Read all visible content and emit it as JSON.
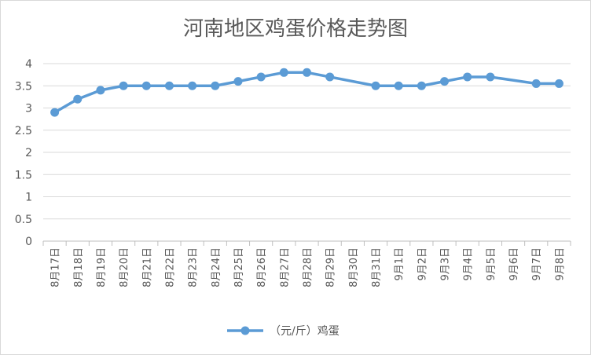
{
  "chart_data": {
    "type": "line",
    "title": "河南地区鸡蛋价格走势图",
    "xlabel": "",
    "ylabel": "",
    "categories": [
      "8月17日",
      "8月18日",
      "8月19日",
      "8月20日",
      "8月21日",
      "8月22日",
      "8月23日",
      "8月24日",
      "8月25日",
      "8月26日",
      "8月27日",
      "8月28日",
      "8月29日",
      "8月30日",
      "8月31日",
      "9月1日",
      "9月2日",
      "9月3日",
      "9月4日",
      "9月5日",
      "9月6日",
      "9月7日",
      "9月8日"
    ],
    "series": [
      {
        "name": "（元/斤）鸡蛋",
        "values": [
          2.9,
          3.2,
          3.4,
          3.5,
          3.5,
          3.5,
          3.5,
          3.5,
          3.6,
          3.7,
          3.8,
          3.8,
          3.7,
          null,
          3.5,
          3.5,
          3.5,
          3.6,
          3.7,
          3.7,
          null,
          3.55,
          3.55
        ],
        "color": "#5b9bd5"
      }
    ],
    "ylim": [
      0,
      4
    ],
    "yticks": [
      "0",
      "0.5",
      "1",
      "1.5",
      "2",
      "2.5",
      "3",
      "3.5",
      "4"
    ],
    "grid": true,
    "legend_position": "bottom"
  }
}
